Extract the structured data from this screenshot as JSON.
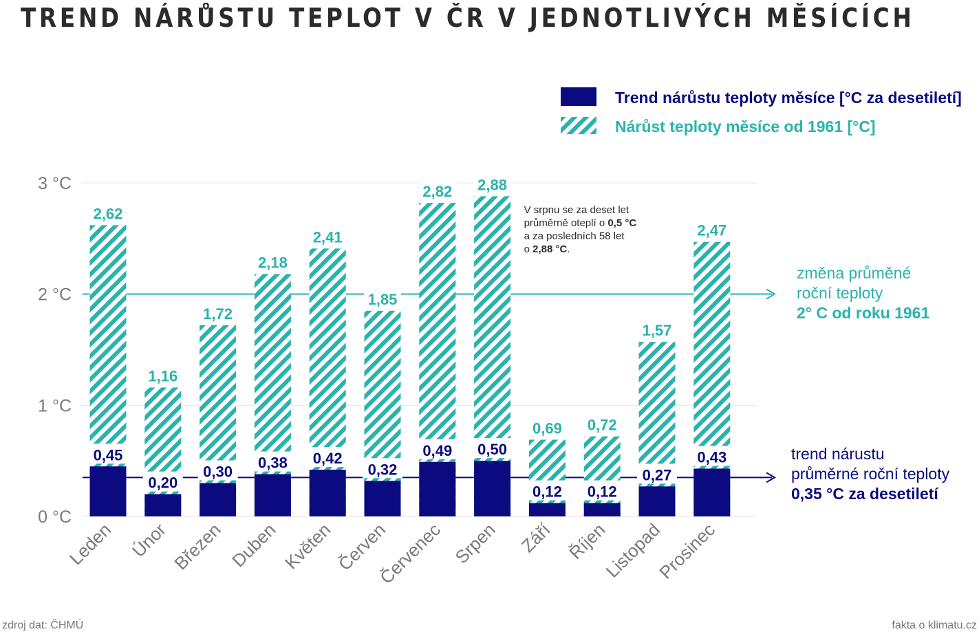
{
  "title": "TREND NÁRŮSTU TEPLOT V ČR V JEDNOTLIVÝCH MĚSÍCÍCH",
  "colors": {
    "trend": "#0b0b7f",
    "increase": "#2ab3ad",
    "text": "#2b2b2b",
    "axis": "#7a7a7a",
    "grid": "#e6e6e6"
  },
  "chart_data": {
    "type": "bar",
    "categories": [
      "Leden",
      "Únor",
      "Březen",
      "Duben",
      "Květen",
      "Červen",
      "Červenec",
      "Srpen",
      "Září",
      "Říjen",
      "Listopad",
      "Prosinec"
    ],
    "series": [
      {
        "name": "Trend nárůstu teploty měsíce [°C za desetiletí]",
        "values": [
          0.45,
          0.2,
          0.3,
          0.38,
          0.42,
          0.32,
          0.49,
          0.5,
          0.12,
          0.12,
          0.27,
          0.43
        ],
        "labels": [
          "0,45",
          "0,20",
          "0,30",
          "0,38",
          "0,42",
          "0,32",
          "0,49",
          "0,50",
          "0,12",
          "0,12",
          "0,27",
          "0,43"
        ]
      },
      {
        "name": "Nárůst teploty měsíce od 1961 [°C]",
        "values": [
          2.62,
          1.16,
          1.72,
          2.18,
          2.41,
          1.85,
          2.82,
          2.88,
          0.69,
          0.72,
          1.57,
          2.47
        ],
        "labels": [
          "2,62",
          "1,16",
          "1,72",
          "2,18",
          "2,41",
          "1,85",
          "2,82",
          "2,88",
          "0,69",
          "0,72",
          "1,57",
          "2,47"
        ]
      }
    ],
    "ylim": [
      0,
      3
    ],
    "yticks": [
      0,
      1,
      2,
      3
    ],
    "ytick_labels": [
      "0 °C",
      "1 °C",
      "2 °C",
      "3 °C"
    ],
    "grid": true,
    "legend_position": "top-right",
    "reference_lines": [
      {
        "value": 2,
        "color": "#2ab3ad",
        "lines": [
          "změna průměné",
          "roční teploty",
          "2° C od roku 1961"
        ]
      },
      {
        "value": 0.35,
        "color": "#0b0b7f",
        "lines": [
          "trend nárustu",
          "průměrné roční teploty",
          "0,35 °C za desetiletí"
        ]
      }
    ],
    "annotation": {
      "category": "Srpen",
      "lines": [
        [
          {
            "t": "V srpnu se za deset let",
            "b": false
          }
        ],
        [
          {
            "t": "průměrně oteplí o ",
            "b": false
          },
          {
            "t": "0,5 °C",
            "b": true
          }
        ],
        [
          {
            "t": "a za posledních 58 let",
            "b": false
          }
        ],
        [
          {
            "t": "o ",
            "b": false
          },
          {
            "t": "2,88 °C",
            "b": true
          },
          {
            "t": ".",
            "b": false
          }
        ]
      ]
    }
  },
  "footer": {
    "source": "zdroj dat: ČHMÚ",
    "brand": "fakta o klimatu.cz"
  }
}
